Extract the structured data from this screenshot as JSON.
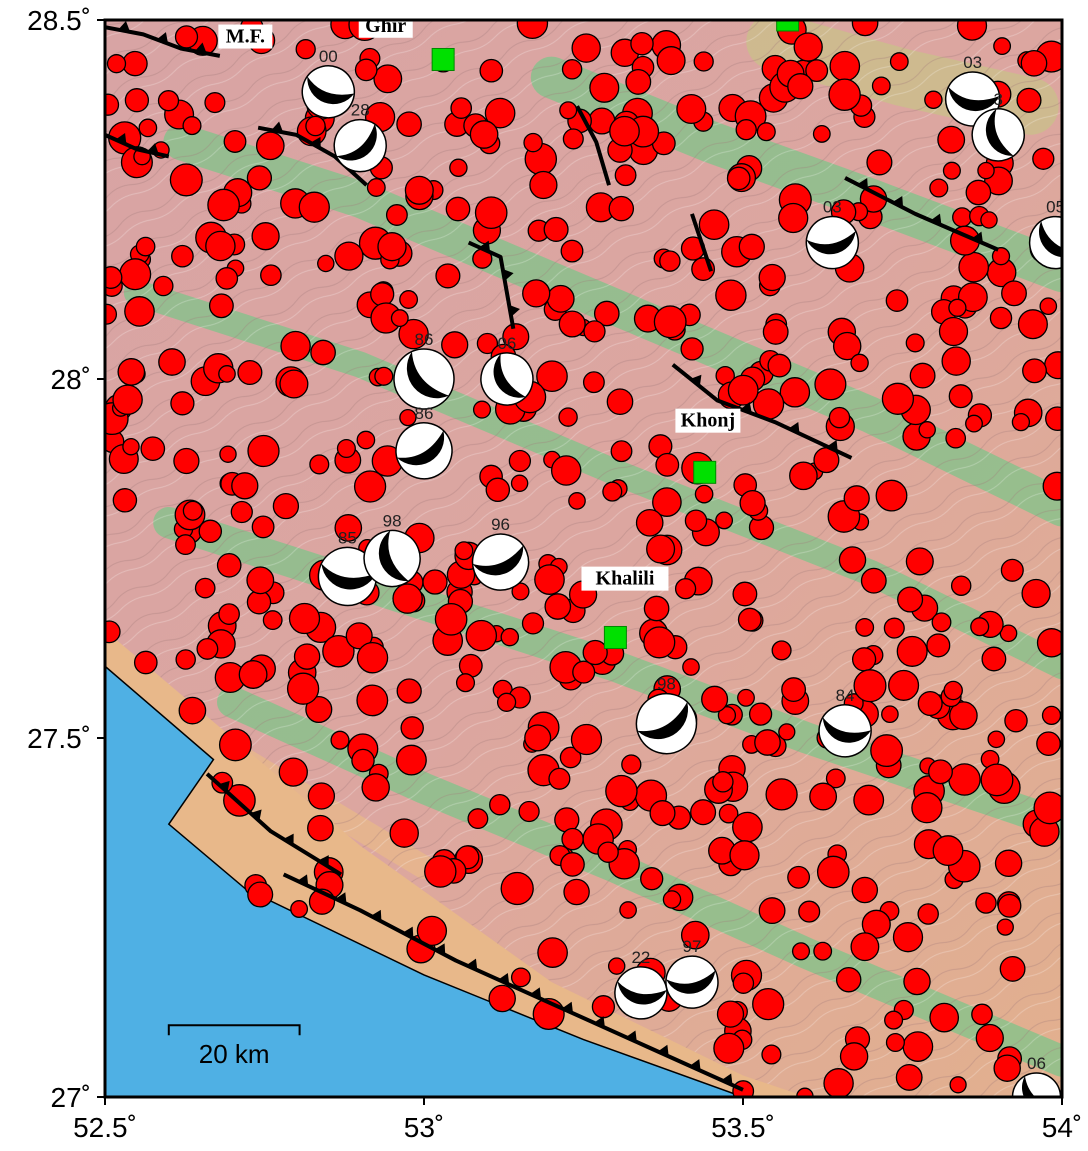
{
  "map": {
    "lon_min": 52.5,
    "lon_max": 54.0,
    "lat_min": 27.0,
    "lat_max": 28.5,
    "colors": {
      "sea": "#4fb0e4",
      "land_low": "#e8b88a",
      "land_mid": "#d9a0a0",
      "land_green": "#7fc48a",
      "land_high": "#c9c08a",
      "quake_fill": "#ff0000",
      "quake_stroke": "#000000",
      "station": "#00e000",
      "fault": "#000000"
    },
    "x_ticks": [
      {
        "value": 52.5,
        "label": "52.5˚"
      },
      {
        "value": 53.0,
        "label": "53˚"
      },
      {
        "value": 53.5,
        "label": "53.5˚"
      },
      {
        "value": 54.0,
        "label": "54˚"
      }
    ],
    "y_ticks": [
      {
        "value": 28.5,
        "label": "28.5˚"
      },
      {
        "value": 28.0,
        "label": "28˚"
      },
      {
        "value": 27.5,
        "label": "27.5˚"
      },
      {
        "value": 27.0,
        "label": "27˚"
      }
    ],
    "place_labels": [
      {
        "text": "Ghir",
        "lon": 52.94,
        "lat": 28.485
      },
      {
        "text": "Khonj",
        "lon": 53.445,
        "lat": 27.935
      },
      {
        "text": "Khalili",
        "lon": 53.315,
        "lat": 27.715
      },
      {
        "text": "M.F.",
        "lon": 52.72,
        "lat": 28.47
      }
    ],
    "scale_bar": {
      "label": "20 km",
      "lon_start": 52.6,
      "lon_end": 52.805,
      "lat": 27.1
    },
    "stations": [
      {
        "lon": 53.03,
        "lat": 28.445
      },
      {
        "lon": 53.44,
        "lat": 27.87
      },
      {
        "lon": 53.3,
        "lat": 27.64
      },
      {
        "lon": 53.57,
        "lat": 28.5
      }
    ],
    "mechanisms": [
      {
        "label": "00",
        "lon": 52.85,
        "lat": 28.4,
        "r": 26,
        "rot": 20
      },
      {
        "label": "28",
        "lon": 52.9,
        "lat": 28.325,
        "r": 26,
        "rot": -40
      },
      {
        "label": "86",
        "lon": 53.0,
        "lat": 28.0,
        "r": 30,
        "rot": 50
      },
      {
        "label": "86",
        "lon": 53.0,
        "lat": 27.9,
        "r": 28,
        "rot": -30
      },
      {
        "label": "06",
        "lon": 53.13,
        "lat": 28.0,
        "r": 26,
        "rot": 60
      },
      {
        "label": "85",
        "lon": 52.88,
        "lat": 27.725,
        "r": 29,
        "rot": 10
      },
      {
        "label": "98",
        "lon": 52.95,
        "lat": 27.75,
        "r": 28,
        "rot": 70
      },
      {
        "label": "96",
        "lon": 53.12,
        "lat": 27.745,
        "r": 28,
        "rot": -20
      },
      {
        "label": "98",
        "lon": 53.38,
        "lat": 27.52,
        "r": 30,
        "rot": -30
      },
      {
        "label": "84",
        "lon": 53.66,
        "lat": 27.51,
        "r": 26,
        "rot": 15
      },
      {
        "label": "03",
        "lon": 53.64,
        "lat": 28.19,
        "r": 26,
        "rot": -10
      },
      {
        "label": "03",
        "lon": 53.86,
        "lat": 28.39,
        "r": 27,
        "rot": 10
      },
      {
        "label": "3",
        "lon": 53.9,
        "lat": 28.34,
        "r": 26,
        "rot": 70
      },
      {
        "label": "05",
        "lon": 53.99,
        "lat": 28.19,
        "r": 26,
        "rot": 40
      },
      {
        "label": "22",
        "lon": 53.34,
        "lat": 27.145,
        "r": 26,
        "rot": 10
      },
      {
        "label": "97",
        "lon": 53.42,
        "lat": 27.16,
        "r": 26,
        "rot": -10
      },
      {
        "label": "06",
        "lon": 53.96,
        "lat": 27.0,
        "r": 24,
        "rot": 45
      }
    ],
    "faults": [
      {
        "points": [
          [
            52.5,
            28.49
          ],
          [
            52.56,
            28.48
          ],
          [
            52.62,
            28.46
          ],
          [
            52.68,
            28.45
          ]
        ],
        "teeth": true
      },
      {
        "points": [
          [
            52.5,
            28.34
          ],
          [
            52.55,
            28.32
          ],
          [
            52.6,
            28.31
          ]
        ],
        "teeth": true
      },
      {
        "points": [
          [
            52.74,
            28.35
          ],
          [
            52.8,
            28.34
          ],
          [
            52.86,
            28.31
          ],
          [
            52.91,
            28.27
          ]
        ],
        "teeth": true
      },
      {
        "points": [
          [
            53.07,
            28.19
          ],
          [
            53.12,
            28.17
          ],
          [
            53.14,
            28.07
          ]
        ],
        "teeth": true
      },
      {
        "points": [
          [
            53.24,
            28.38
          ],
          [
            53.27,
            28.33
          ],
          [
            53.29,
            28.27
          ]
        ],
        "teeth": false
      },
      {
        "points": [
          [
            53.42,
            28.23
          ],
          [
            53.45,
            28.15
          ]
        ],
        "teeth": false
      },
      {
        "points": [
          [
            53.39,
            28.02
          ],
          [
            53.46,
            27.97
          ],
          [
            53.55,
            27.94
          ],
          [
            53.67,
            27.89
          ]
        ],
        "teeth": true
      },
      {
        "points": [
          [
            53.66,
            28.28
          ],
          [
            53.77,
            28.23
          ],
          [
            53.9,
            28.18
          ]
        ],
        "teeth": true
      },
      {
        "points": [
          [
            52.66,
            27.45
          ],
          [
            52.76,
            27.37
          ],
          [
            52.87,
            27.31
          ]
        ],
        "teeth": true
      },
      {
        "points": [
          [
            52.78,
            27.31
          ],
          [
            52.9,
            27.26
          ],
          [
            53.05,
            27.19
          ],
          [
            53.2,
            27.13
          ],
          [
            53.35,
            27.07
          ],
          [
            53.5,
            27.01
          ]
        ],
        "teeth": true
      }
    ]
  }
}
